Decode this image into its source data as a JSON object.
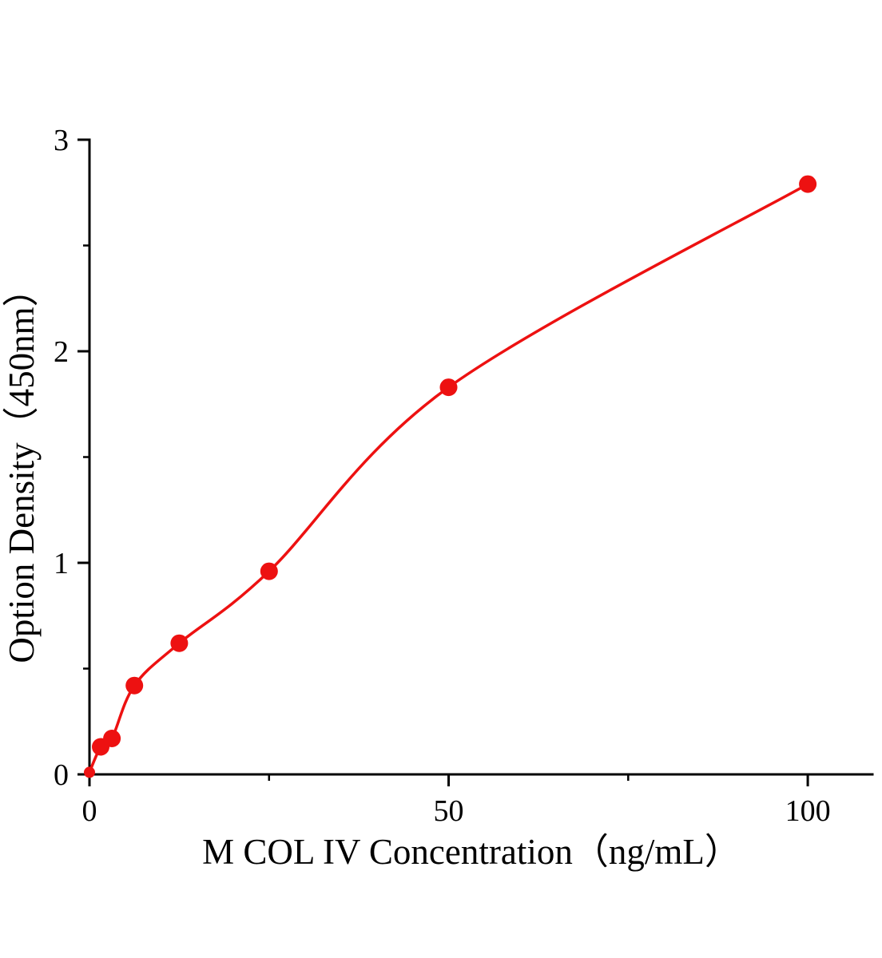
{
  "chart_data": {
    "type": "scatter",
    "title": "",
    "xlabel": "M COL IV Concentration（ng/mL）",
    "ylabel": "Option Density（450nm）",
    "x": [
      0,
      1.56,
      3.12,
      6.25,
      12.5,
      25,
      50,
      100
    ],
    "y": [
      0.01,
      0.13,
      0.17,
      0.42,
      0.62,
      0.96,
      1.83,
      2.79
    ],
    "fit_curve": "smooth curve through standard points",
    "xlim": [
      0,
      109
    ],
    "ylim": [
      0,
      3
    ],
    "x_major_ticks": [
      0,
      50,
      100
    ],
    "x_minor_ticks": [
      25,
      75
    ],
    "y_major_ticks": [
      0,
      1,
      2,
      3
    ],
    "y_minor_ticks": [
      0.5,
      1.5,
      2.5
    ],
    "grid": false,
    "legend": null,
    "series_color": "#ed1111",
    "axis_color": "#000000",
    "marker_radius": 11,
    "line_width": 3.5
  }
}
